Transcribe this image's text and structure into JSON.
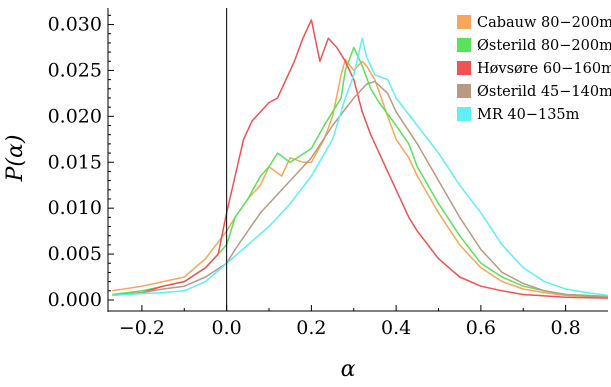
{
  "chart_data": {
    "type": "line",
    "title": "",
    "xlabel": "α",
    "ylabel": "P(α)",
    "xlim": [
      -0.28,
      0.9
    ],
    "ylim": [
      -0.0012,
      0.0318
    ],
    "xticks": [
      -0.2,
      0.0,
      0.2,
      0.4,
      0.6,
      0.8
    ],
    "xtick_labels": [
      "−0.2",
      "0.0",
      "0.2",
      "0.4",
      "0.6",
      "0.8"
    ],
    "yticks": [
      0.0,
      0.005,
      0.01,
      0.015,
      0.02,
      0.025,
      0.03
    ],
    "ytick_labels": [
      "0.000",
      "0.005",
      "0.010",
      "0.015",
      "0.020",
      "0.025",
      "0.030"
    ],
    "vline_x": 0.0,
    "grid": false,
    "legend_position": "top-right",
    "series": [
      {
        "name": "Cabauw 80−200m",
        "color": "#f7a65c",
        "points": [
          [
            -0.27,
            0.001
          ],
          [
            -0.2,
            0.0015
          ],
          [
            -0.15,
            0.002
          ],
          [
            -0.1,
            0.0025
          ],
          [
            -0.05,
            0.0045
          ],
          [
            0.0,
            0.0075
          ],
          [
            0.02,
            0.009
          ],
          [
            0.05,
            0.011
          ],
          [
            0.08,
            0.0125
          ],
          [
            0.1,
            0.0145
          ],
          [
            0.13,
            0.0135
          ],
          [
            0.15,
            0.0155
          ],
          [
            0.18,
            0.015
          ],
          [
            0.2,
            0.015
          ],
          [
            0.23,
            0.0175
          ],
          [
            0.25,
            0.02
          ],
          [
            0.27,
            0.0245
          ],
          [
            0.28,
            0.0262
          ],
          [
            0.3,
            0.025
          ],
          [
            0.32,
            0.026
          ],
          [
            0.33,
            0.0255
          ],
          [
            0.35,
            0.024
          ],
          [
            0.38,
            0.02
          ],
          [
            0.4,
            0.0175
          ],
          [
            0.43,
            0.0155
          ],
          [
            0.45,
            0.0135
          ],
          [
            0.5,
            0.0095
          ],
          [
            0.55,
            0.006
          ],
          [
            0.6,
            0.0035
          ],
          [
            0.65,
            0.002
          ],
          [
            0.7,
            0.0012
          ],
          [
            0.75,
            0.0008
          ],
          [
            0.8,
            0.0005
          ],
          [
            0.9,
            0.0003
          ]
        ]
      },
      {
        "name": "Østerild 80−200m",
        "color": "#59e35b",
        "points": [
          [
            -0.27,
            0.0006
          ],
          [
            -0.2,
            0.001
          ],
          [
            -0.15,
            0.0015
          ],
          [
            -0.1,
            0.002
          ],
          [
            -0.05,
            0.0035
          ],
          [
            0.0,
            0.006
          ],
          [
            0.02,
            0.009
          ],
          [
            0.05,
            0.011
          ],
          [
            0.08,
            0.0135
          ],
          [
            0.1,
            0.0145
          ],
          [
            0.12,
            0.016
          ],
          [
            0.15,
            0.015
          ],
          [
            0.2,
            0.0165
          ],
          [
            0.23,
            0.019
          ],
          [
            0.25,
            0.0205
          ],
          [
            0.27,
            0.022
          ],
          [
            0.28,
            0.025
          ],
          [
            0.3,
            0.0275
          ],
          [
            0.32,
            0.0255
          ],
          [
            0.34,
            0.023
          ],
          [
            0.36,
            0.0215
          ],
          [
            0.4,
            0.019
          ],
          [
            0.43,
            0.017
          ],
          [
            0.45,
            0.0145
          ],
          [
            0.5,
            0.0105
          ],
          [
            0.55,
            0.007
          ],
          [
            0.6,
            0.004
          ],
          [
            0.65,
            0.0025
          ],
          [
            0.7,
            0.0015
          ],
          [
            0.75,
            0.001
          ],
          [
            0.8,
            0.0006
          ],
          [
            0.9,
            0.0004
          ]
        ]
      },
      {
        "name": "Høvsøre 60−160m",
        "color": "#f05252",
        "points": [
          [
            -0.27,
            0.0005
          ],
          [
            -0.2,
            0.0008
          ],
          [
            -0.15,
            0.0015
          ],
          [
            -0.1,
            0.002
          ],
          [
            -0.05,
            0.0035
          ],
          [
            -0.02,
            0.005
          ],
          [
            0.0,
            0.0095
          ],
          [
            0.02,
            0.0135
          ],
          [
            0.04,
            0.0175
          ],
          [
            0.06,
            0.0195
          ],
          [
            0.08,
            0.0205
          ],
          [
            0.1,
            0.0215
          ],
          [
            0.12,
            0.022
          ],
          [
            0.14,
            0.024
          ],
          [
            0.16,
            0.026
          ],
          [
            0.18,
            0.0285
          ],
          [
            0.2,
            0.0305
          ],
          [
            0.22,
            0.026
          ],
          [
            0.24,
            0.0285
          ],
          [
            0.26,
            0.0275
          ],
          [
            0.28,
            0.026
          ],
          [
            0.3,
            0.024
          ],
          [
            0.32,
            0.0205
          ],
          [
            0.34,
            0.018
          ],
          [
            0.37,
            0.015
          ],
          [
            0.4,
            0.012
          ],
          [
            0.43,
            0.009
          ],
          [
            0.45,
            0.0075
          ],
          [
            0.5,
            0.0045
          ],
          [
            0.55,
            0.0025
          ],
          [
            0.6,
            0.0015
          ],
          [
            0.65,
            0.001
          ],
          [
            0.7,
            0.0006
          ],
          [
            0.8,
            0.0003
          ],
          [
            0.9,
            0.0002
          ]
        ]
      },
      {
        "name": "Østerild 45−140m",
        "color": "#b89a82",
        "points": [
          [
            -0.27,
            0.0005
          ],
          [
            -0.2,
            0.0008
          ],
          [
            -0.15,
            0.0012
          ],
          [
            -0.1,
            0.0015
          ],
          [
            -0.05,
            0.0025
          ],
          [
            0.0,
            0.004
          ],
          [
            0.02,
            0.0055
          ],
          [
            0.05,
            0.0075
          ],
          [
            0.08,
            0.0095
          ],
          [
            0.1,
            0.0105
          ],
          [
            0.15,
            0.013
          ],
          [
            0.2,
            0.0155
          ],
          [
            0.25,
            0.019
          ],
          [
            0.3,
            0.022
          ],
          [
            0.33,
            0.0235
          ],
          [
            0.35,
            0.0238
          ],
          [
            0.38,
            0.0225
          ],
          [
            0.4,
            0.0205
          ],
          [
            0.45,
            0.017
          ],
          [
            0.5,
            0.013
          ],
          [
            0.55,
            0.009
          ],
          [
            0.6,
            0.0055
          ],
          [
            0.65,
            0.003
          ],
          [
            0.7,
            0.0018
          ],
          [
            0.75,
            0.001
          ],
          [
            0.8,
            0.0006
          ],
          [
            0.9,
            0.0003
          ]
        ]
      },
      {
        "name": "MR 40−135m",
        "color": "#5ef0f5",
        "points": [
          [
            -0.27,
            0.0005
          ],
          [
            -0.2,
            0.0007
          ],
          [
            -0.15,
            0.0008
          ],
          [
            -0.1,
            0.001
          ],
          [
            -0.05,
            0.002
          ],
          [
            0.0,
            0.004
          ],
          [
            0.05,
            0.006
          ],
          [
            0.1,
            0.008
          ],
          [
            0.15,
            0.0105
          ],
          [
            0.2,
            0.0135
          ],
          [
            0.25,
            0.0175
          ],
          [
            0.28,
            0.022
          ],
          [
            0.3,
            0.0245
          ],
          [
            0.32,
            0.0285
          ],
          [
            0.33,
            0.0265
          ],
          [
            0.35,
            0.0245
          ],
          [
            0.38,
            0.024
          ],
          [
            0.4,
            0.022
          ],
          [
            0.45,
            0.019
          ],
          [
            0.5,
            0.016
          ],
          [
            0.55,
            0.0125
          ],
          [
            0.6,
            0.0095
          ],
          [
            0.65,
            0.006
          ],
          [
            0.7,
            0.0035
          ],
          [
            0.75,
            0.002
          ],
          [
            0.8,
            0.0012
          ],
          [
            0.85,
            0.0008
          ],
          [
            0.9,
            0.0005
          ]
        ]
      }
    ]
  }
}
